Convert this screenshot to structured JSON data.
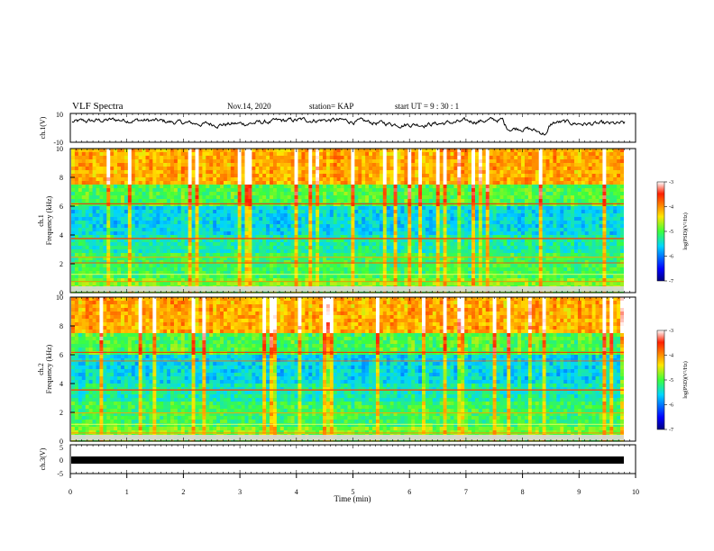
{
  "header": {
    "title": "VLF Spectra",
    "date": "Nov.14, 2020",
    "station": "station= KAP",
    "start": "start  UT =  9 : 30 : 1"
  },
  "chart_data": [
    {
      "type": "line",
      "panel": "ch1-waveform",
      "ylabel": "ch.1(V)",
      "ylim": [
        -10,
        10
      ],
      "yticks": [
        "10",
        "-10"
      ],
      "xlim": [
        0,
        10
      ]
    },
    {
      "type": "heatmap",
      "panel": "ch1-spectrogram",
      "ylabel_line1": "ch.1",
      "ylabel_line2": "Frequency (kHz)",
      "ylim": [
        0,
        10
      ],
      "yticks": [
        "10",
        "8",
        "6",
        "4",
        "2",
        "0"
      ],
      "xlim": [
        0,
        10
      ],
      "colorbar": {
        "label": "log(PSD)(V²/Hz)",
        "range": [
          -7,
          -3
        ],
        "ticks": [
          "-3",
          "-4",
          "-5",
          "-6",
          "-7"
        ]
      }
    },
    {
      "type": "heatmap",
      "panel": "ch2-spectrogram",
      "ylabel_line1": "ch.2",
      "ylabel_line2": "Frequency (kHz)",
      "ylim": [
        0,
        10
      ],
      "yticks": [
        "10",
        "8",
        "6",
        "4",
        "2",
        "0"
      ],
      "xlim": [
        0,
        10
      ],
      "colorbar": {
        "label": "log(PSD)(V²/Hz)",
        "range": [
          -7,
          -3
        ],
        "ticks": [
          "-3",
          "-4",
          "-5",
          "-6",
          "-7"
        ]
      }
    },
    {
      "type": "line",
      "panel": "ch3-waveform",
      "ylabel": "ch.3(V)",
      "ylim": [
        -5,
        5
      ],
      "yticks": [
        "5",
        "0",
        "-5"
      ],
      "xlim": [
        0,
        10
      ],
      "xlabel": "Time (min)",
      "xticks": [
        "0",
        "1",
        "2",
        "3",
        "4",
        "5",
        "6",
        "7",
        "8",
        "9",
        "10"
      ]
    }
  ]
}
